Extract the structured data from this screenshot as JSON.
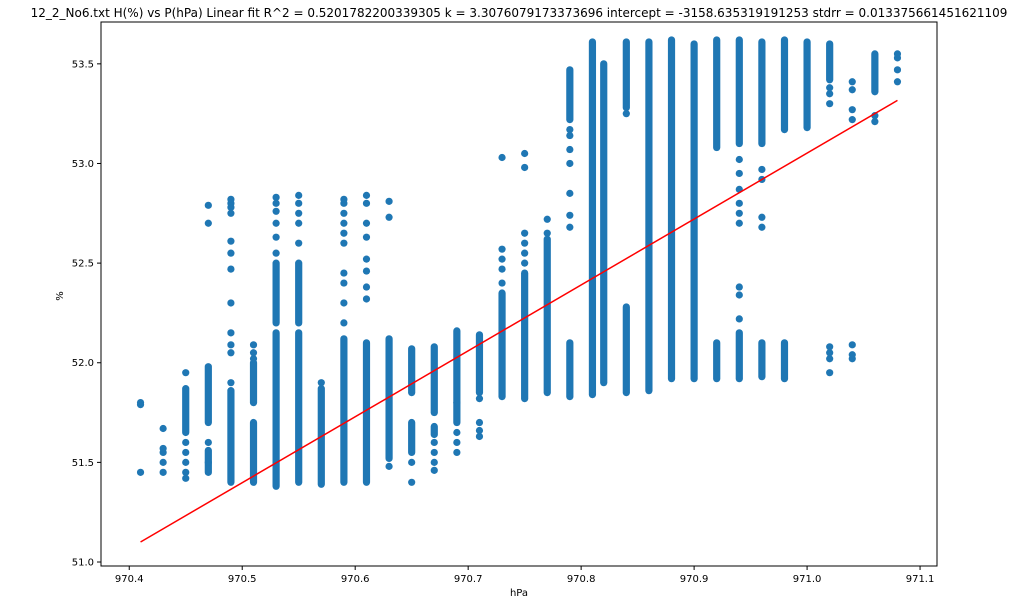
{
  "chart_data": {
    "type": "scatter",
    "title": "12_2_No6.txt    H(%) vs P(hPa)    Linear fit    R^2 = 0.5201782200339305  k = 3.3076079173373696  intercept = -3158.635319191253  stdrr = 0.013375661451621109",
    "xlabel": "hPa",
    "ylabel": "%",
    "xlim": [
      970.375,
      971.115
    ],
    "ylim": [
      50.98,
      53.71
    ],
    "xticks": [
      970.4,
      970.5,
      970.6,
      970.7,
      970.8,
      970.9,
      971.0,
      971.1
    ],
    "xtick_labels": [
      "970.4",
      "970.5",
      "970.6",
      "970.7",
      "970.8",
      "970.9",
      "971.0",
      "971.1"
    ],
    "yticks": [
      51.0,
      51.5,
      52.0,
      52.5,
      53.0,
      53.5
    ],
    "ytick_labels": [
      "51.0",
      "51.5",
      "52.0",
      "52.5",
      "53.0",
      "53.5"
    ],
    "grid": false,
    "scatter_color": "#1f77b4",
    "fit_color": "#ff0000",
    "fit_line": {
      "k": 3.3076079173373696,
      "intercept": -3158.635319191253,
      "x_range": [
        970.41,
        971.08
      ]
    },
    "columns": [
      {
        "x": 970.41,
        "points": [
          51.45,
          51.79,
          51.8
        ]
      },
      {
        "x": 970.43,
        "points": [
          51.45,
          51.5,
          51.55,
          51.57,
          51.67
        ]
      },
      {
        "x": 970.45,
        "points": [
          51.42,
          51.45,
          51.5,
          51.55,
          51.6,
          51.95
        ],
        "ranges": [
          [
            51.65,
            51.87
          ]
        ]
      },
      {
        "x": 970.47,
        "points": [
          51.5,
          51.6,
          52.7,
          52.79
        ],
        "ranges": [
          [
            51.45,
            51.56
          ],
          [
            51.7,
            51.98
          ]
        ]
      },
      {
        "x": 970.49,
        "points": [
          51.9,
          52.05,
          52.09,
          52.15,
          52.3,
          52.47,
          52.55,
          52.61,
          52.75,
          52.78,
          52.8,
          52.82
        ],
        "ranges": [
          [
            51.4,
            51.86
          ]
        ]
      },
      {
        "x": 970.51,
        "points": [
          52.02,
          52.05,
          52.09
        ],
        "ranges": [
          [
            51.4,
            51.7
          ],
          [
            51.8,
            52.0
          ]
        ]
      },
      {
        "x": 970.53,
        "points": [
          52.55,
          52.63,
          52.7,
          52.76,
          52.8,
          52.83
        ],
        "ranges": [
          [
            51.38,
            52.15
          ],
          [
            52.2,
            52.5
          ]
        ]
      },
      {
        "x": 970.55,
        "points": [
          52.6,
          52.7,
          52.75,
          52.8,
          52.84
        ],
        "ranges": [
          [
            51.4,
            52.15
          ],
          [
            52.2,
            52.5
          ]
        ]
      },
      {
        "x": 970.57,
        "points": [
          51.9
        ],
        "ranges": [
          [
            51.39,
            51.87
          ]
        ]
      },
      {
        "x": 970.59,
        "points": [
          52.2,
          52.3,
          52.4,
          52.45,
          52.6,
          52.65,
          52.7,
          52.75,
          52.8,
          52.82
        ],
        "ranges": [
          [
            51.4,
            52.12
          ]
        ]
      },
      {
        "x": 970.61,
        "points": [
          52.32,
          52.38,
          52.46,
          52.52,
          52.63,
          52.7,
          52.8,
          52.84
        ],
        "ranges": [
          [
            51.4,
            52.1
          ]
        ]
      },
      {
        "x": 970.63,
        "points": [
          51.48,
          52.73,
          52.81
        ],
        "ranges": [
          [
            51.52,
            52.12
          ]
        ]
      },
      {
        "x": 970.65,
        "points": [
          51.4,
          51.5
        ],
        "ranges": [
          [
            51.55,
            51.7
          ],
          [
            51.85,
            52.07
          ]
        ]
      },
      {
        "x": 970.67,
        "points": [
          51.46,
          51.5,
          51.55,
          51.6
        ],
        "ranges": [
          [
            51.64,
            51.68
          ],
          [
            51.75,
            52.08
          ]
        ]
      },
      {
        "x": 970.69,
        "points": [
          51.55,
          51.6,
          51.65
        ],
        "ranges": [
          [
            51.7,
            51.8
          ],
          [
            51.8,
            52.16
          ]
        ]
      },
      {
        "x": 970.71,
        "points": [
          51.63,
          51.66,
          51.7,
          51.82
        ],
        "ranges": [
          [
            51.85,
            52.14
          ]
        ]
      },
      {
        "x": 970.73,
        "points": [
          52.4,
          52.47,
          52.52,
          52.57,
          53.03
        ],
        "ranges": [
          [
            51.83,
            52.35
          ]
        ]
      },
      {
        "x": 970.75,
        "points": [
          52.5,
          52.55,
          52.6,
          52.65,
          52.98,
          53.05
        ],
        "ranges": [
          [
            51.82,
            52.45
          ]
        ]
      },
      {
        "x": 970.77,
        "points": [
          52.65,
          52.72
        ],
        "ranges": [
          [
            51.85,
            52.62
          ]
        ]
      },
      {
        "x": 970.79,
        "points": [
          52.68,
          52.74,
          52.85,
          53.0,
          53.07,
          53.14,
          53.17
        ],
        "ranges": [
          [
            51.83,
            52.1
          ],
          [
            53.22,
            53.47
          ]
        ]
      },
      {
        "x": 970.81,
        "ranges": [
          [
            51.84,
            53.61
          ]
        ]
      },
      {
        "x": 970.82,
        "ranges": [
          [
            51.9,
            53.5
          ]
        ]
      },
      {
        "x": 970.84,
        "points": [
          53.25
        ],
        "ranges": [
          [
            51.85,
            52.28
          ],
          [
            53.28,
            53.61
          ]
        ]
      },
      {
        "x": 970.86,
        "ranges": [
          [
            51.86,
            53.61
          ]
        ]
      },
      {
        "x": 970.88,
        "ranges": [
          [
            51.92,
            53.62
          ]
        ]
      },
      {
        "x": 970.9,
        "ranges": [
          [
            51.92,
            53.6
          ]
        ]
      },
      {
        "x": 970.92,
        "ranges": [
          [
            51.92,
            52.1
          ],
          [
            53.08,
            53.62
          ]
        ]
      },
      {
        "x": 970.94,
        "points": [
          52.22,
          52.34,
          52.38,
          52.7,
          52.75,
          52.8,
          52.87,
          52.95,
          53.02
        ],
        "ranges": [
          [
            51.92,
            52.15
          ],
          [
            53.1,
            53.62
          ]
        ]
      },
      {
        "x": 970.96,
        "points": [
          52.68,
          52.73,
          52.92,
          52.97
        ],
        "ranges": [
          [
            51.93,
            52.1
          ],
          [
            53.1,
            53.61
          ]
        ]
      },
      {
        "x": 970.98,
        "ranges": [
          [
            51.92,
            52.1
          ],
          [
            53.17,
            53.62
          ]
        ]
      },
      {
        "x": 971.0,
        "ranges": [
          [
            53.18,
            53.61
          ]
        ]
      },
      {
        "x": 971.02,
        "points": [
          51.95,
          52.02,
          52.05,
          52.08,
          53.3,
          53.35,
          53.38
        ],
        "ranges": [
          [
            53.42,
            53.6
          ]
        ]
      },
      {
        "x": 971.04,
        "points": [
          52.02,
          52.04,
          52.09,
          53.22,
          53.27,
          53.37,
          53.41
        ]
      },
      {
        "x": 971.06,
        "points": [
          53.21,
          53.24
        ],
        "ranges": [
          [
            53.36,
            53.55
          ]
        ]
      },
      {
        "x": 971.08,
        "points": [
          53.41,
          53.47,
          53.53,
          53.55
        ]
      }
    ]
  }
}
